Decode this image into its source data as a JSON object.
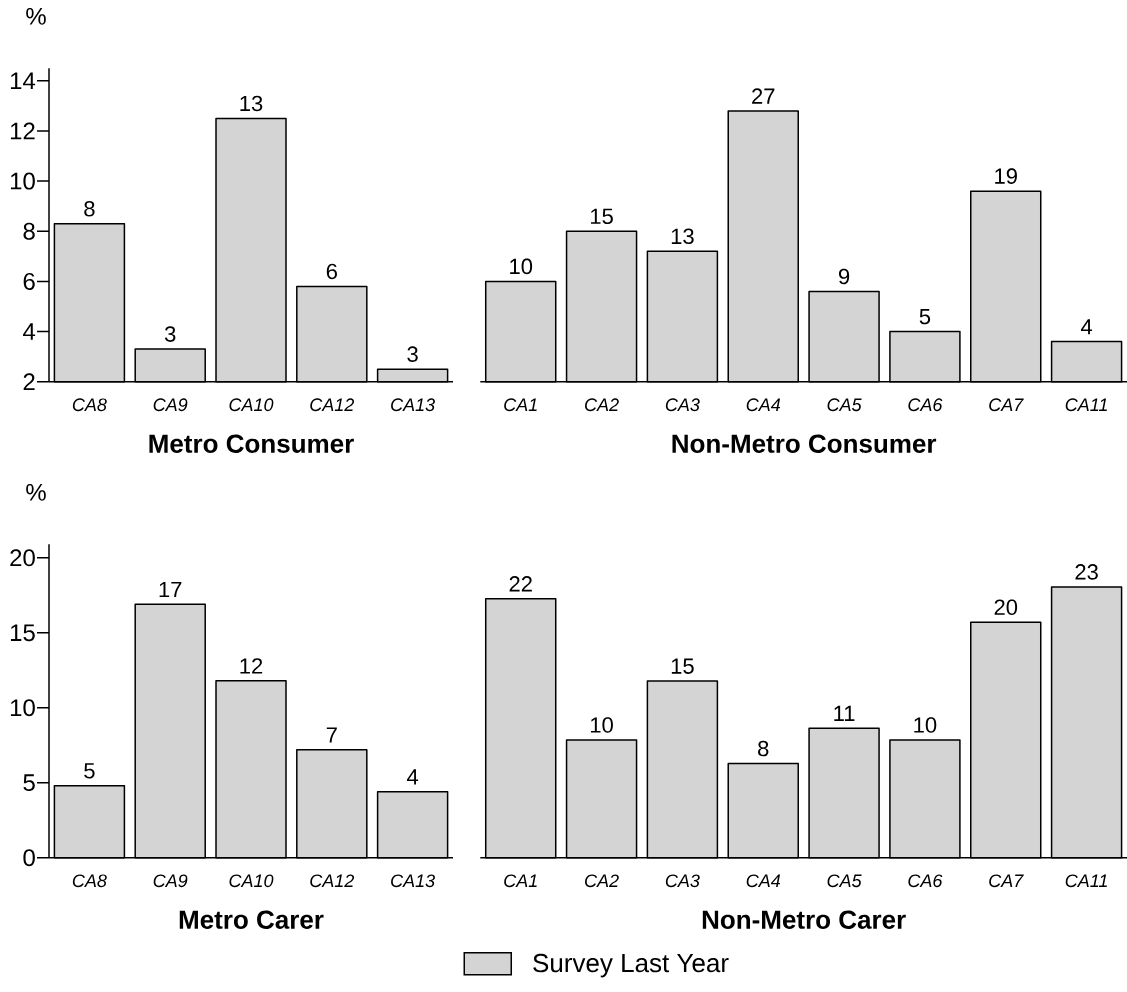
{
  "chart_data": [
    {
      "type": "bar",
      "title": "Metro Consumer",
      "ylabel": "%",
      "categories": [
        "CA8",
        "CA9",
        "CA10",
        "CA12",
        "CA13"
      ],
      "series": [
        {
          "color": "#d4d4d4",
          "values": [
            8.3,
            3.3,
            12.5,
            5.8,
            2.5
          ],
          "value_labels": [
            "8",
            "3",
            "13",
            "6",
            "3"
          ]
        }
      ],
      "ylim": [
        2,
        14.5
      ],
      "yticks": [
        2,
        4,
        6,
        8,
        10,
        12,
        14
      ]
    },
    {
      "type": "bar",
      "title": "Non-Metro Consumer",
      "categories": [
        "CA1",
        "CA2",
        "CA3",
        "CA4",
        "CA5",
        "CA6",
        "CA7",
        "CA11"
      ],
      "series": [
        {
          "color": "#d4d4d4",
          "values": [
            10,
            15,
            13,
            27,
            9,
            5,
            19,
            4
          ]
        }
      ],
      "data_labels": true,
      "tick_labels": "x"
    },
    {
      "type": "bar",
      "title": "Metro Carer",
      "ylabel": "%",
      "categories": [
        "CA8",
        "CA9",
        "CA10",
        "CA12",
        "CA13"
      ],
      "series": [
        {
          "color": "#d4d4d4",
          "values": [
            4.8,
            16.9,
            11.8,
            7.2,
            4.4
          ],
          "value_labels": [
            "5",
            "17",
            "12",
            "7",
            "4"
          ]
        }
      ],
      "ylim": [
        0,
        20.9
      ],
      "yticks": [
        0,
        5,
        10,
        15,
        20
      ]
    },
    {
      "type": "bar",
      "title": "Non-Metro Carer",
      "categories": [
        "CA1",
        "CA2",
        "CA3",
        "CA4",
        "CA5",
        "CA6",
        "CA7",
        "CA11"
      ],
      "series": [
        {
          "name": "Survey Last Year",
          "color": "#d4d4d4",
          "values": [
            22,
            10,
            15,
            8,
            11,
            10,
            20,
            23
          ]
        }
      ],
      "data_labels": true,
      "tick_labels": "x",
      "legend": "bottom"
    }
  ]
}
